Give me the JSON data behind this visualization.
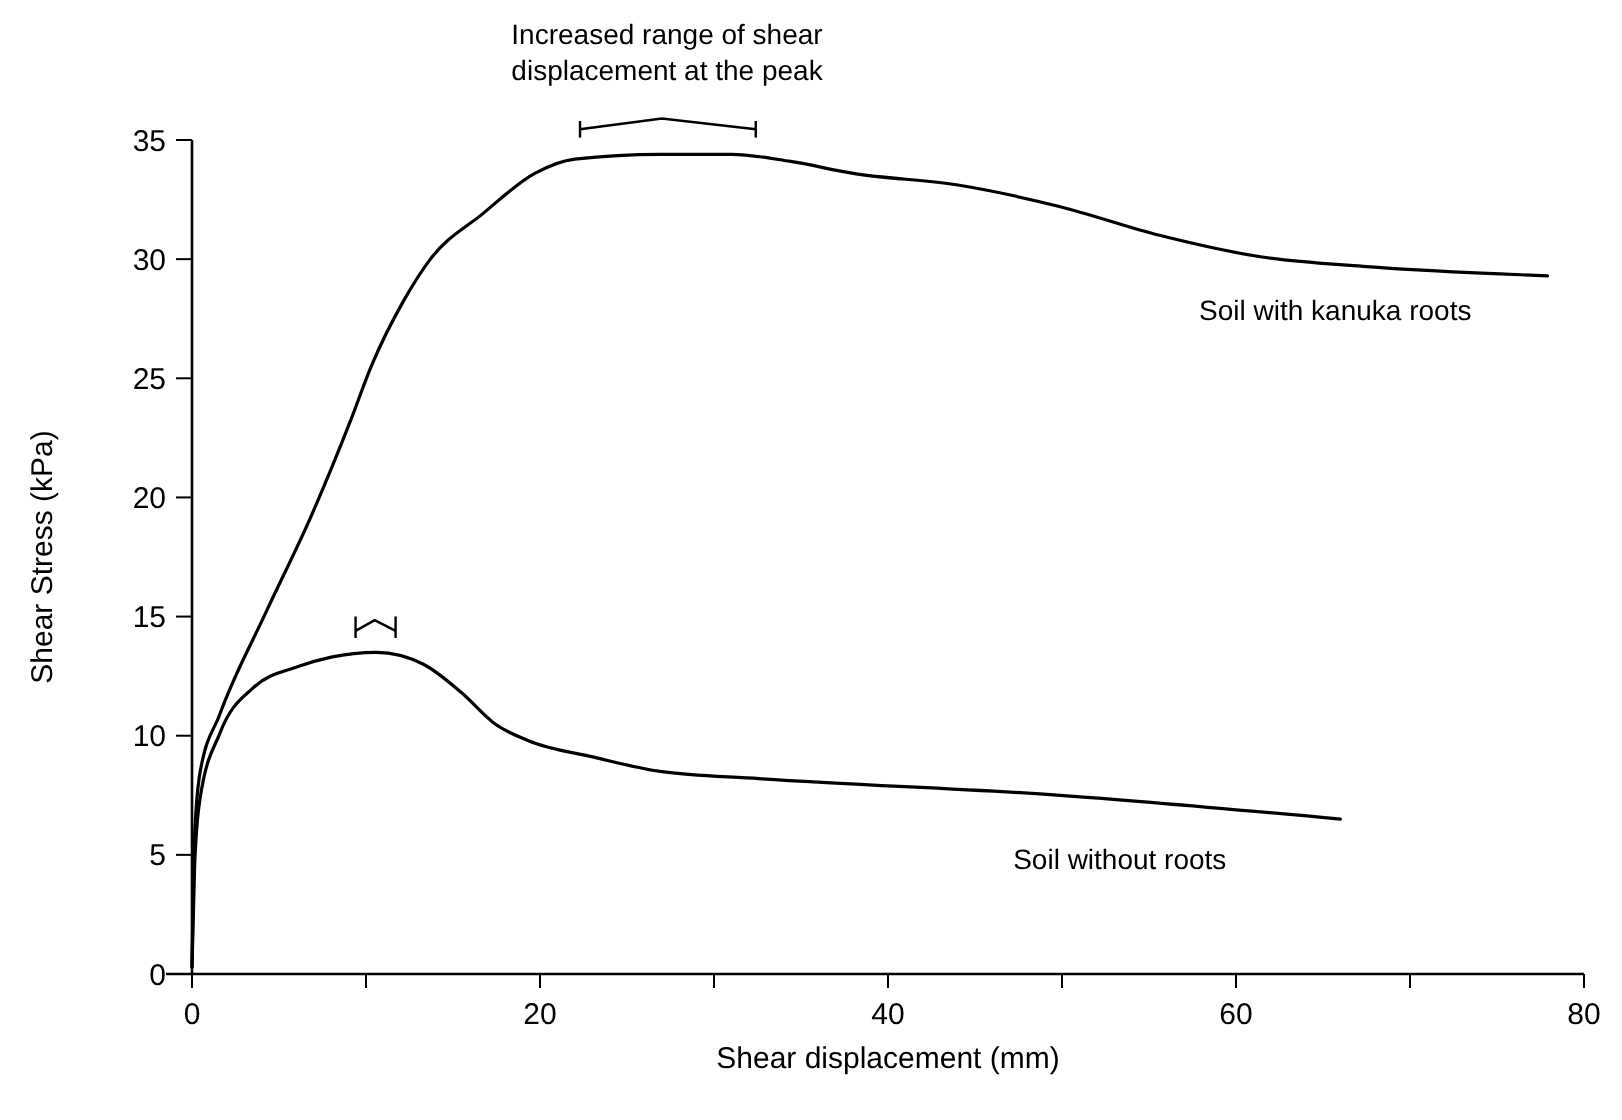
{
  "chart_data": {
    "type": "line",
    "xlabel": "Shear displacement (mm)",
    "ylabel": "Shear Stress (kPa)",
    "annotations": [
      "Increased range of shear displacement at the peak"
    ],
    "xlim": [
      0,
      80
    ],
    "ylim": [
      0,
      35
    ],
    "xticks": [
      0,
      {
        "value": 10,
        "label": null
      },
      20,
      {
        "value": 30,
        "label": null
      },
      40,
      {
        "value": 50,
        "label": null
      },
      60,
      {
        "value": 70,
        "label": null
      },
      80
    ],
    "yticks": [
      0,
      5,
      10,
      15,
      20,
      25,
      30,
      35
    ],
    "grid": false,
    "marker": "none",
    "line_style": "solid",
    "series": [
      {
        "name": "Soil with kanuka roots",
        "color": "#000000",
        "x": [
          0,
          0.1,
          0.45,
          1.6,
          4.2,
          6.9,
          9.1,
          10.3,
          12.2,
          13.7,
          16.7,
          19.7,
          22,
          26.9,
          31,
          34.4,
          38,
          44.1,
          49.9,
          55.6,
          61.4,
          67.3,
          77.9
        ],
        "values": [
          0.3,
          5,
          8.4,
          10.9,
          15.1,
          19.3,
          23.2,
          25.5,
          28.3,
          30,
          31.9,
          33.6,
          34.2,
          34.4,
          34.4,
          34.1,
          33.6,
          33.1,
          32.2,
          31,
          30.1,
          29.7,
          29.3
        ]
      },
      {
        "name": "Soil without roots",
        "color": "#000000",
        "x": [
          0,
          0.15,
          0.45,
          1.6,
          3.5,
          6.1,
          8,
          10.6,
          13.3,
          15.5,
          17.4,
          19.3,
          23.1,
          26.9,
          32.6,
          49.9,
          66
        ],
        "values": [
          0.3,
          4.5,
          7.3,
          10.1,
          12,
          12.9,
          13.3,
          13.5,
          13,
          11.8,
          10.5,
          9.8,
          9.1,
          8.5,
          8.2,
          7.5,
          6.5
        ]
      }
    ]
  }
}
